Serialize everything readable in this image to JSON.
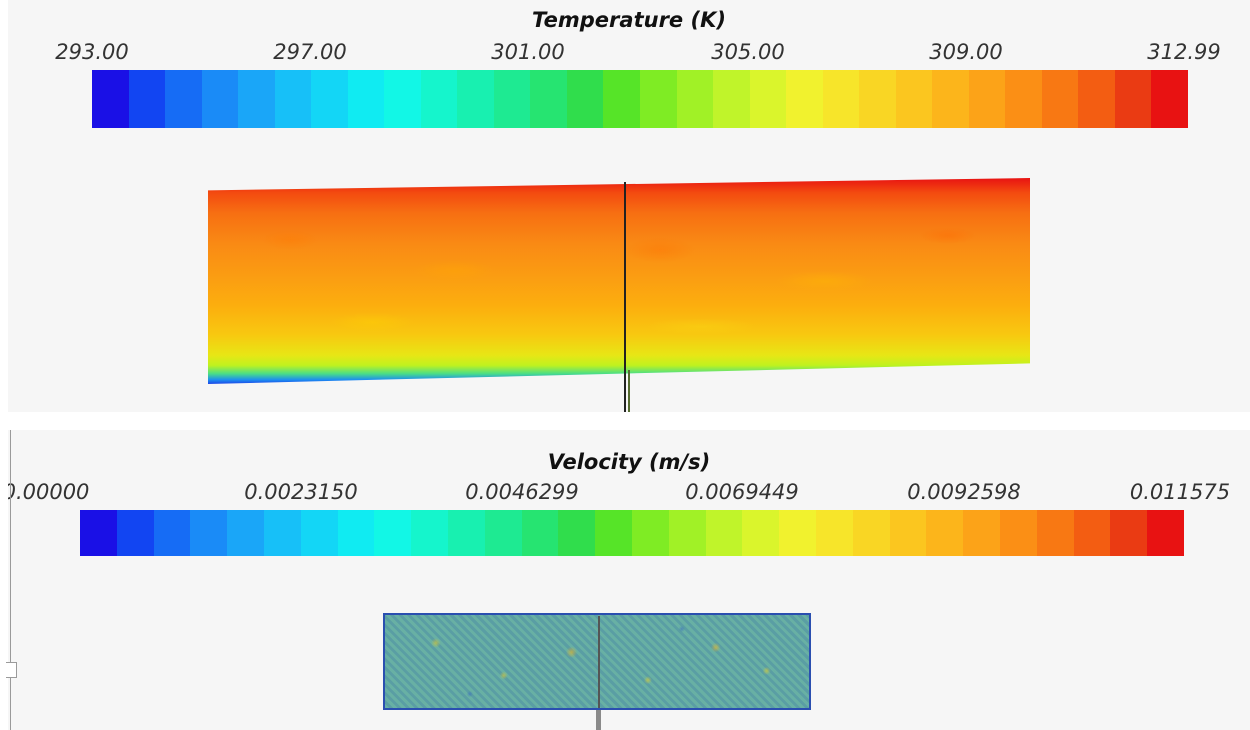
{
  "panels": {
    "temperature": {
      "title": "Temperature (K)",
      "ticks": [
        "293.00",
        "297.00",
        "301.00",
        "305.00",
        "309.00",
        "312.99"
      ],
      "min": 293.0,
      "max": 312.99,
      "colormap": [
        "#1a10e6",
        "#1245f2",
        "#166cf5",
        "#1a8bf7",
        "#1aa6f8",
        "#17c0f8",
        "#13d6f6",
        "#10ebf2",
        "#12f7e6",
        "#15f5cc",
        "#18f0b0",
        "#1eea92",
        "#26e471",
        "#30dd4c",
        "#56e428",
        "#7fec24",
        "#a1f126",
        "#c0f42a",
        "#daf52c",
        "#f1f22e",
        "#f7e52a",
        "#f9d624",
        "#fbc61f",
        "#fcb51b",
        "#fca318",
        "#fb8f15",
        "#f87813",
        "#f35d12",
        "#ea3b13",
        "#e81212"
      ]
    },
    "velocity": {
      "title": "Velocity (m/s)",
      "ticks": [
        "0.00000",
        "0.0023150",
        "0.0046299",
        "0.0069449",
        "0.0092598",
        "0.011575"
      ],
      "min": 0.0,
      "max": 0.011575,
      "colormap": [
        "#1a10e6",
        "#1245f2",
        "#166cf5",
        "#1a8bf7",
        "#1aa6f8",
        "#17c0f8",
        "#13d6f6",
        "#10ebf2",
        "#12f7e6",
        "#15f5cc",
        "#18f0b0",
        "#1eea92",
        "#26e471",
        "#30dd4c",
        "#56e428",
        "#7fec24",
        "#a1f126",
        "#c0f42a",
        "#daf52c",
        "#f1f22e",
        "#f7e52a",
        "#f9d624",
        "#fbc61f",
        "#fcb51b",
        "#fca318",
        "#fb8f15",
        "#f87813",
        "#f35d12",
        "#ea3b13",
        "#e81212"
      ]
    }
  }
}
